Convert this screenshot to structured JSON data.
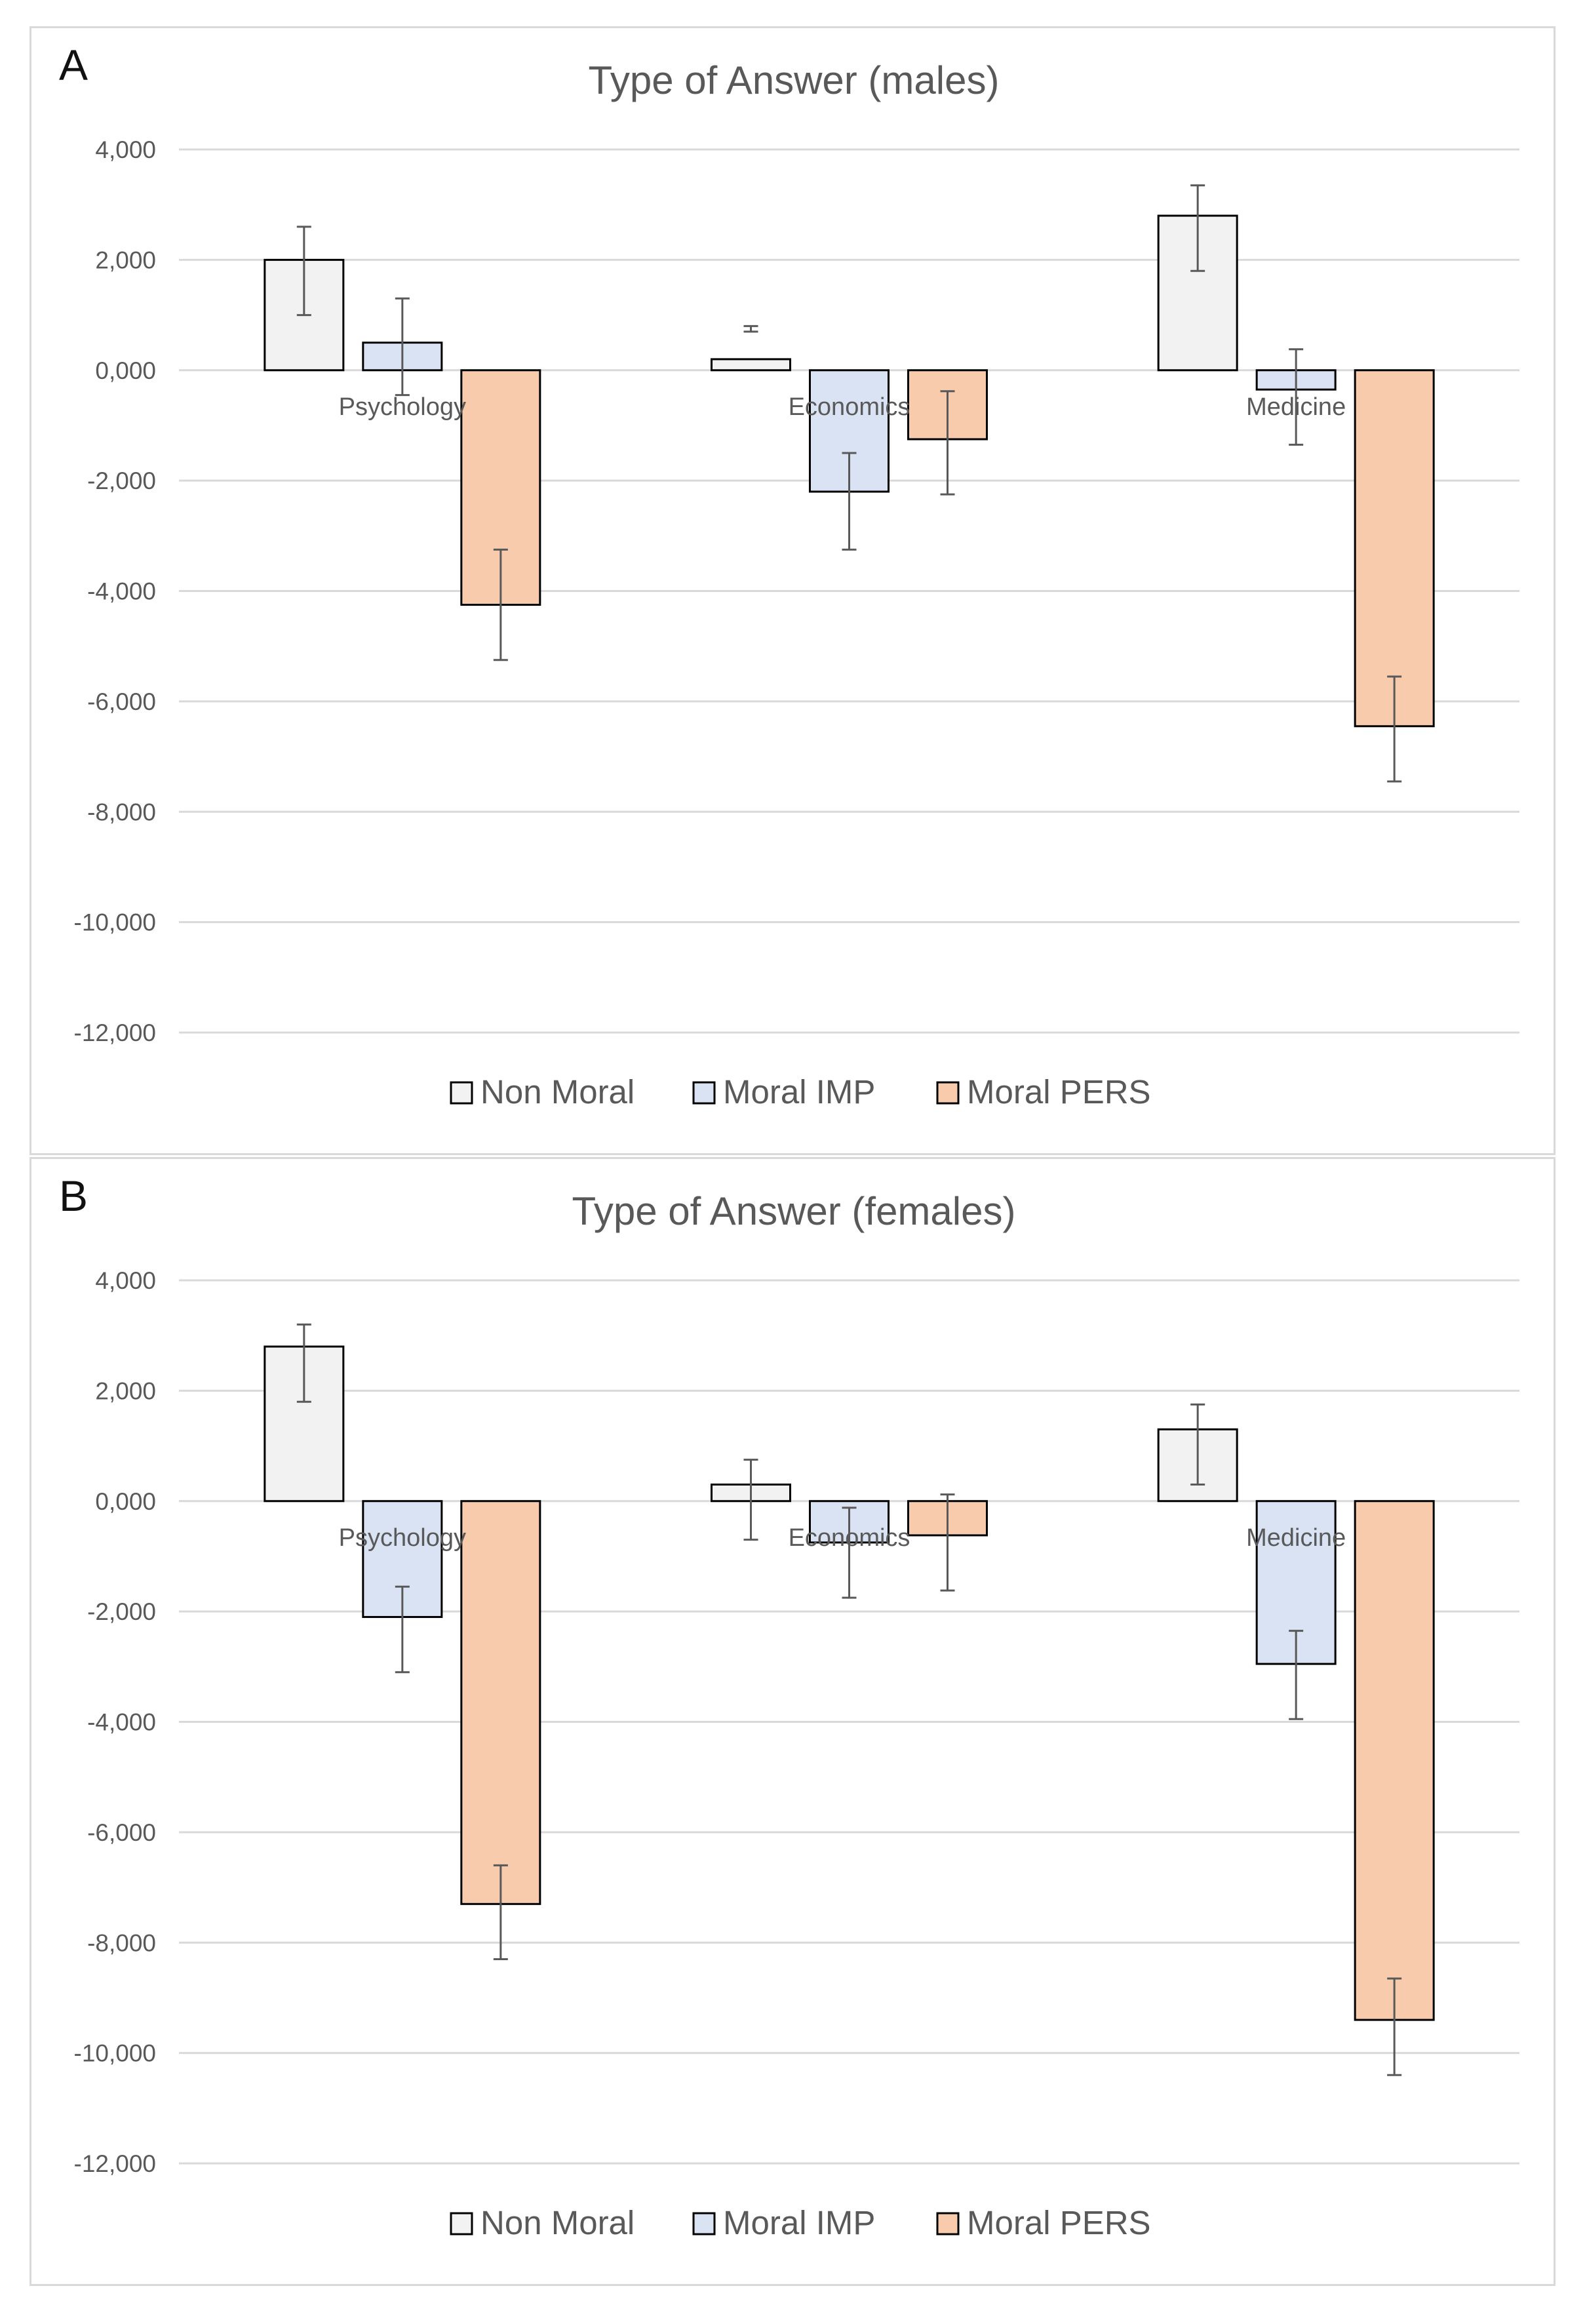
{
  "colors": {
    "non_moral": "#f2f2f2",
    "moral_imp": "#dae3f3",
    "moral_pers": "#f8cbad",
    "bar_border": "#000000",
    "grid": "#d9d9d9",
    "error_bar": "#595959",
    "text": "#595959"
  },
  "chart_data": [
    {
      "panel_label": "A",
      "type": "bar",
      "title": "Type of Answer (males)",
      "categories": [
        "Psychology",
        "Economics",
        "Medicine"
      ],
      "series": [
        {
          "name": "Non Moral",
          "values": [
            2.0,
            0.2,
            2.8
          ],
          "err_low": [
            1.0,
            0.8,
            1.8
          ],
          "err_high": [
            2.6,
            0.7,
            3.35
          ]
        },
        {
          "name": "Moral IMP",
          "values": [
            0.5,
            -2.2,
            -0.35
          ],
          "err_low": [
            -0.45,
            -3.25,
            -1.35
          ],
          "err_high": [
            1.3,
            -1.5,
            0.38
          ]
        },
        {
          "name": "Moral PERS",
          "values": [
            -4.25,
            -1.25,
            -6.45
          ],
          "err_low": [
            -5.25,
            -2.25,
            -7.45
          ],
          "err_high": [
            -3.25,
            -0.38,
            -5.55
          ]
        }
      ],
      "ylim": [
        -12,
        4
      ],
      "yticks": [
        4,
        2,
        0,
        -2,
        -4,
        -6,
        -8,
        -10,
        -12
      ],
      "ytick_labels": [
        "4,000",
        "2,000",
        "0,000",
        "-2,000",
        "-4,000",
        "-6,000",
        "-8,000",
        "-10,000",
        "-12,000"
      ],
      "grid": true,
      "legend_position": "bottom"
    },
    {
      "panel_label": "B",
      "type": "bar",
      "title": "Type of Answer (females)",
      "categories": [
        "Psychology",
        "Economics",
        "Medicine"
      ],
      "series": [
        {
          "name": "Non Moral",
          "values": [
            2.8,
            0.3,
            1.3
          ],
          "err_low": [
            1.8,
            -0.7,
            0.3
          ],
          "err_high": [
            3.2,
            0.75,
            1.75
          ]
        },
        {
          "name": "Moral IMP",
          "values": [
            -2.1,
            -0.75,
            -2.95
          ],
          "err_low": [
            -3.1,
            -1.75,
            -3.95
          ],
          "err_high": [
            -1.55,
            -0.12,
            -2.35
          ]
        },
        {
          "name": "Moral PERS",
          "values": [
            -7.3,
            -0.62,
            -9.4
          ],
          "err_low": [
            -8.3,
            -1.62,
            -10.4
          ],
          "err_high": [
            -6.6,
            0.12,
            -8.65
          ]
        }
      ],
      "ylim": [
        -12,
        4
      ],
      "yticks": [
        4,
        2,
        0,
        -2,
        -4,
        -6,
        -8,
        -10,
        -12
      ],
      "ytick_labels": [
        "4,000",
        "2,000",
        "0,000",
        "-2,000",
        "-4,000",
        "-6,000",
        "-8,000",
        "-10,000",
        "-12,000"
      ],
      "grid": true,
      "legend_position": "bottom"
    }
  ]
}
